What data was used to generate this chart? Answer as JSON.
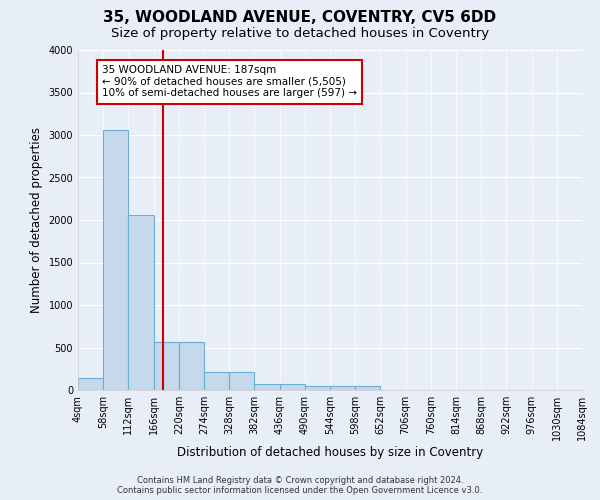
{
  "title": "35, WOODLAND AVENUE, COVENTRY, CV5 6DD",
  "subtitle": "Size of property relative to detached houses in Coventry",
  "xlabel": "Distribution of detached houses by size in Coventry",
  "ylabel": "Number of detached properties",
  "bin_edges": [
    4,
    58,
    112,
    166,
    220,
    274,
    328,
    382,
    436,
    490,
    544,
    598,
    652,
    706,
    760,
    814,
    868,
    922,
    976,
    1030,
    1084
  ],
  "bar_heights": [
    140,
    3060,
    2060,
    570,
    570,
    210,
    210,
    70,
    70,
    50,
    50,
    50,
    0,
    0,
    0,
    0,
    0,
    0,
    0,
    0
  ],
  "bar_color": "#c5d8ec",
  "bar_edge_color": "#6baed6",
  "red_line_x": 187,
  "red_line_color": "#cc0000",
  "annotation_line1": "35 WOODLAND AVENUE: 187sqm",
  "annotation_line2": "← 90% of detached houses are smaller (5,505)",
  "annotation_line3": "10% of semi-detached houses are larger (597) →",
  "annotation_box_color": "#ffffff",
  "annotation_box_edge": "#cc0000",
  "ylim": [
    0,
    4000
  ],
  "yticks": [
    0,
    500,
    1000,
    1500,
    2000,
    2500,
    3000,
    3500,
    4000
  ],
  "background_color": "#e8eef8",
  "grid_color": "#ffffff",
  "footer_line1": "Contains HM Land Registry data © Crown copyright and database right 2024.",
  "footer_line2": "Contains public sector information licensed under the Open Government Licence v3.0.",
  "title_fontsize": 11,
  "subtitle_fontsize": 9.5,
  "label_fontsize": 8.5,
  "tick_fontsize": 7,
  "annotation_fontsize": 7.5,
  "footer_fontsize": 6
}
